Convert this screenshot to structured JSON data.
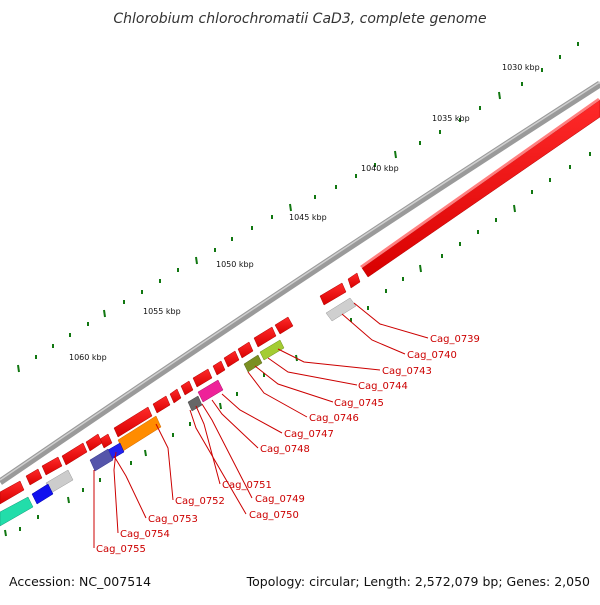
{
  "title": "Chlorobium chlorochromatii CaD3, complete genome",
  "footer": {
    "accession": "Accession: NC_007514",
    "summary": "Topology: circular; Length: 2,572,079 bp; Genes: 2,050"
  },
  "scale_labels": [
    "1030 kbp",
    "1035 kbp",
    "1040 kbp",
    "1045 kbp",
    "1050 kbp",
    "1055 kbp",
    "1060 kbp"
  ],
  "gene_labels": [
    "Cag_0739",
    "Cag_0740",
    "Cag_0743",
    "Cag_0744",
    "Cag_0745",
    "Cag_0746",
    "Cag_0747",
    "Cag_0748",
    "Cag_0751",
    "Cag_0749",
    "Cag_0752",
    "Cag_0750",
    "Cag_0753",
    "Cag_0754",
    "Cag_0755"
  ],
  "colors": {
    "forward_strand": "#ee0000",
    "backbone": "#888888",
    "label": "#cc0000",
    "tick": "#117711"
  }
}
